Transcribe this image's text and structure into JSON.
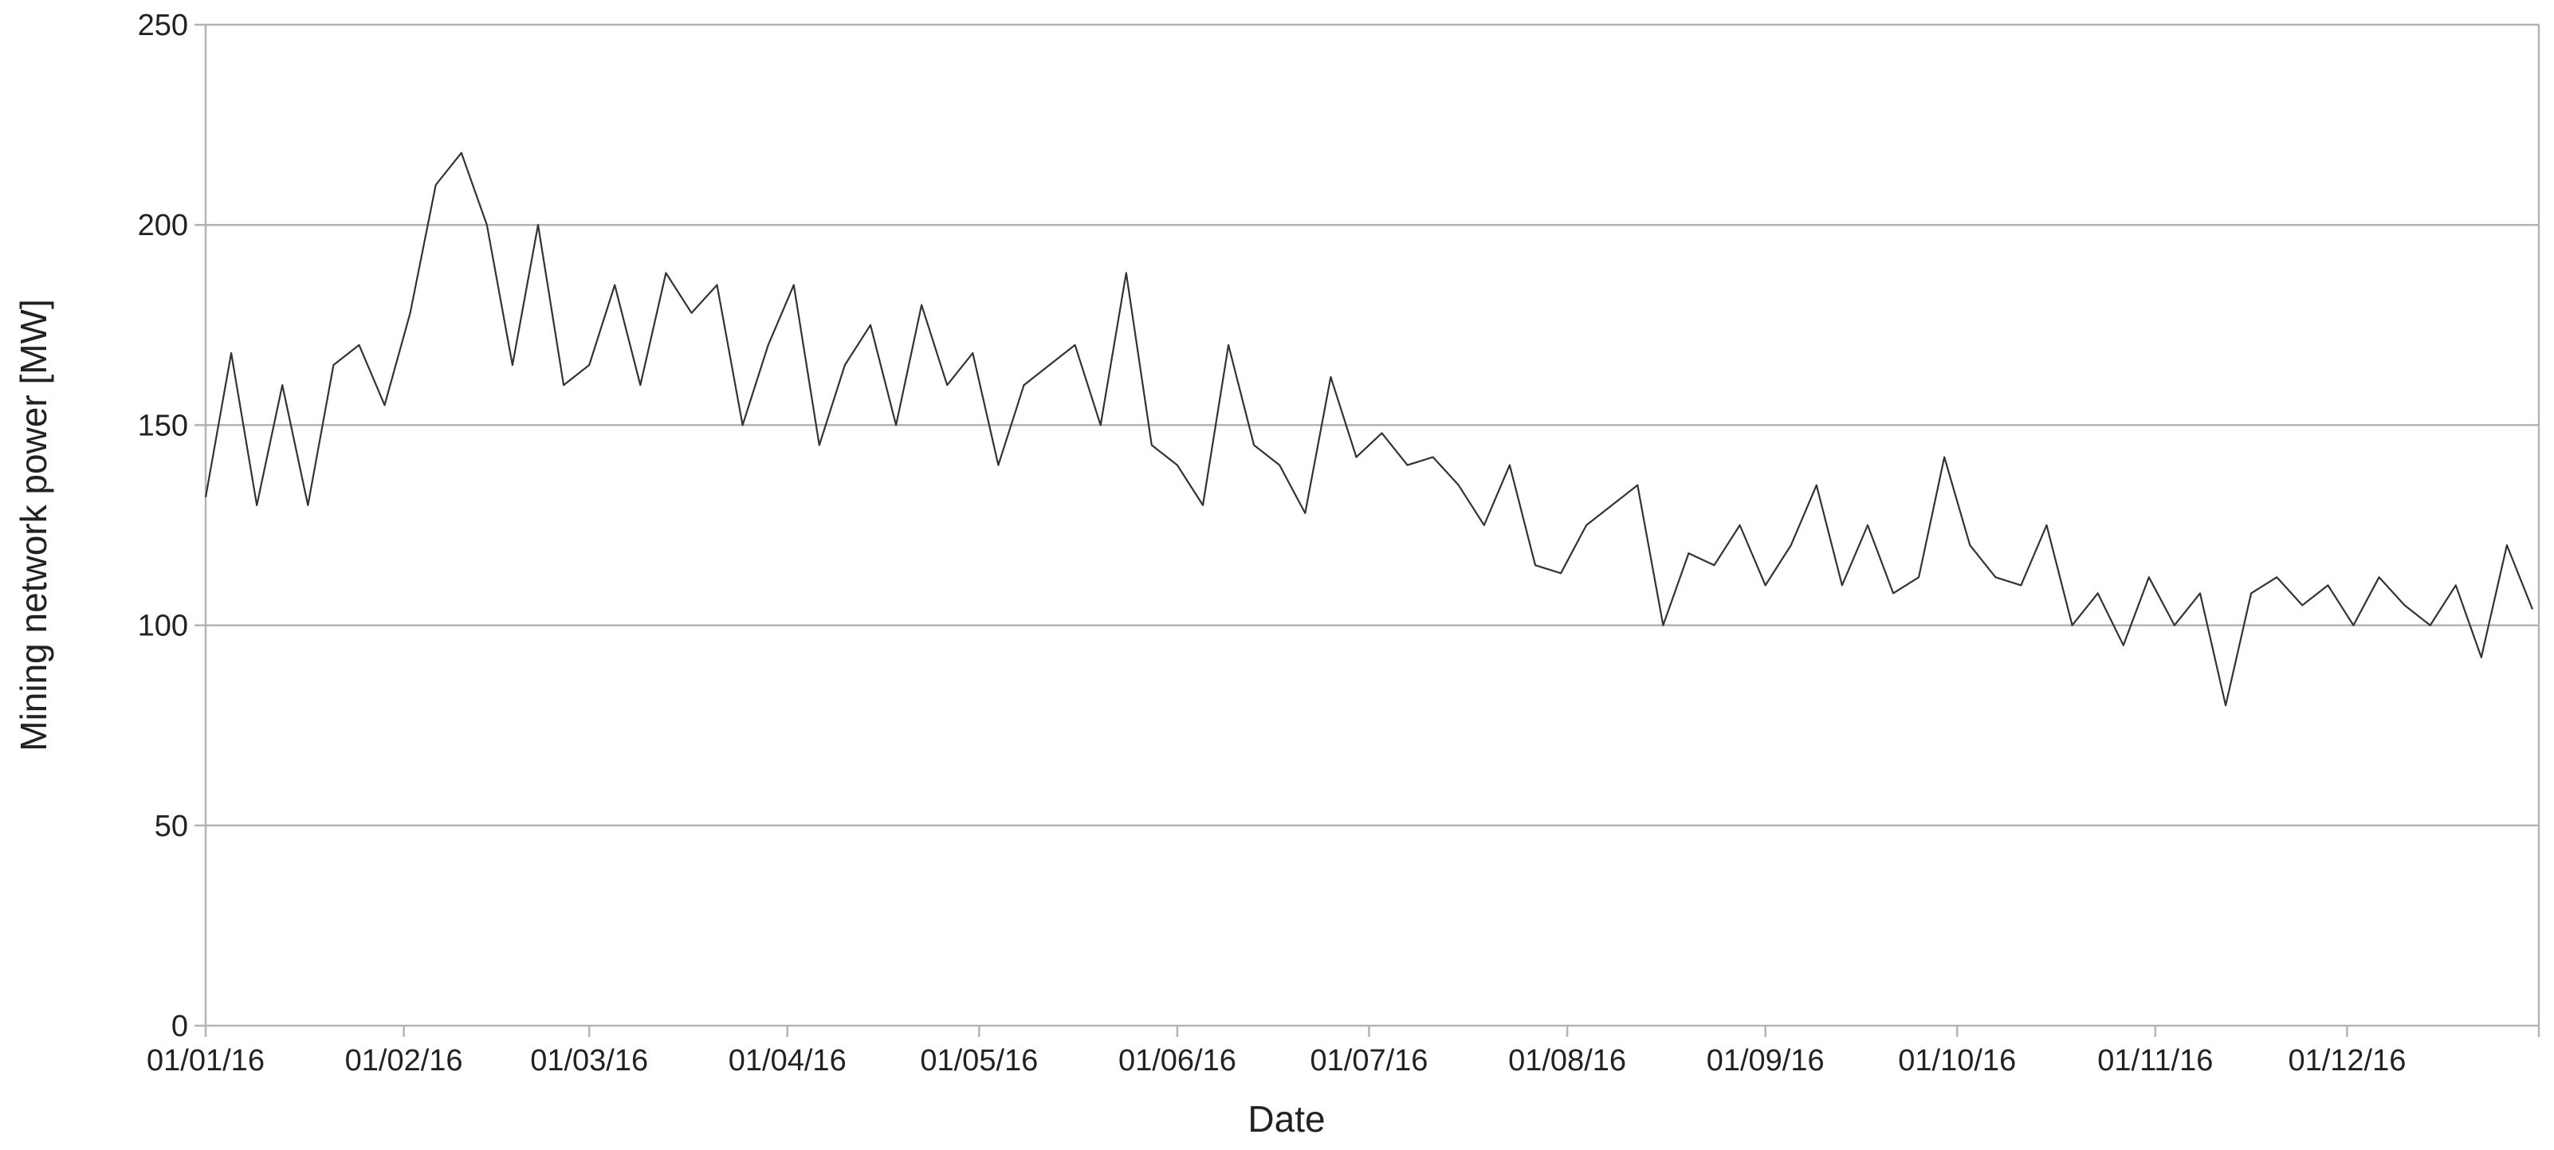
{
  "chart_data": {
    "type": "line",
    "xlabel": "Date",
    "ylabel": "Mining network power [MW]",
    "x": [
      "01/01/16",
      "05/01/16",
      "09/01/16",
      "13/01/16",
      "17/01/16",
      "21/01/16",
      "25/01/16",
      "29/01/16",
      "02/02/16",
      "06/02/16",
      "10/02/16",
      "14/02/16",
      "18/02/16",
      "22/02/16",
      "26/02/16",
      "01/03/16",
      "05/03/16",
      "09/03/16",
      "13/03/16",
      "17/03/16",
      "21/03/16",
      "25/03/16",
      "29/03/16",
      "02/04/16",
      "06/04/16",
      "10/04/16",
      "14/04/16",
      "18/04/16",
      "22/04/16",
      "26/04/16",
      "30/04/16",
      "04/05/16",
      "08/05/16",
      "12/05/16",
      "16/05/16",
      "20/05/16",
      "24/05/16",
      "28/05/16",
      "01/06/16",
      "05/06/16",
      "09/06/16",
      "13/06/16",
      "17/06/16",
      "21/06/16",
      "25/06/16",
      "29/06/16",
      "03/07/16",
      "07/07/16",
      "11/07/16",
      "15/07/16",
      "19/07/16",
      "23/07/16",
      "27/07/16",
      "31/07/16",
      "04/08/16",
      "08/08/16",
      "12/08/16",
      "16/08/16",
      "20/08/16",
      "24/08/16",
      "28/08/16",
      "01/09/16",
      "05/09/16",
      "09/09/16",
      "13/09/16",
      "17/09/16",
      "21/09/16",
      "25/09/16",
      "29/09/16",
      "03/10/16",
      "07/10/16",
      "11/10/16",
      "15/10/16",
      "19/10/16",
      "23/10/16",
      "27/10/16",
      "31/10/16",
      "04/11/16",
      "08/11/16",
      "12/11/16",
      "16/11/16",
      "20/11/16",
      "24/11/16",
      "28/11/16",
      "02/12/16",
      "06/12/16",
      "10/12/16",
      "14/12/16",
      "18/12/16",
      "22/12/16",
      "26/12/16",
      "30/12/16"
    ],
    "series": [
      {
        "name": "Mining network power",
        "color": "#333333",
        "values": [
          132,
          168,
          130,
          160,
          130,
          165,
          170,
          155,
          178,
          210,
          218,
          200,
          165,
          200,
          160,
          165,
          185,
          160,
          188,
          178,
          185,
          150,
          170,
          185,
          145,
          165,
          175,
          150,
          180,
          160,
          168,
          140,
          160,
          165,
          170,
          150,
          188,
          145,
          140,
          130,
          170,
          145,
          140,
          128,
          162,
          142,
          148,
          140,
          142,
          135,
          125,
          140,
          115,
          113,
          125,
          130,
          135,
          100,
          118,
          115,
          125,
          110,
          120,
          135,
          110,
          125,
          108,
          112,
          142,
          120,
          112,
          110,
          125,
          100,
          108,
          95,
          112,
          100,
          108,
          80,
          108,
          112,
          105,
          110,
          100,
          112,
          105,
          100,
          110,
          92,
          120,
          104
        ]
      }
    ],
    "xlim": [
      "01/01/16",
      "31/12/16"
    ],
    "xticks": [
      "01/01/16",
      "01/02/16",
      "01/03/16",
      "01/04/16",
      "01/05/16",
      "01/06/16",
      "01/07/16",
      "01/08/16",
      "01/09/16",
      "01/10/16",
      "01/11/16",
      "01/12/16"
    ],
    "ylim": [
      0,
      250
    ],
    "yticks": [
      0,
      50,
      100,
      150,
      200,
      250
    ],
    "grid": true
  }
}
